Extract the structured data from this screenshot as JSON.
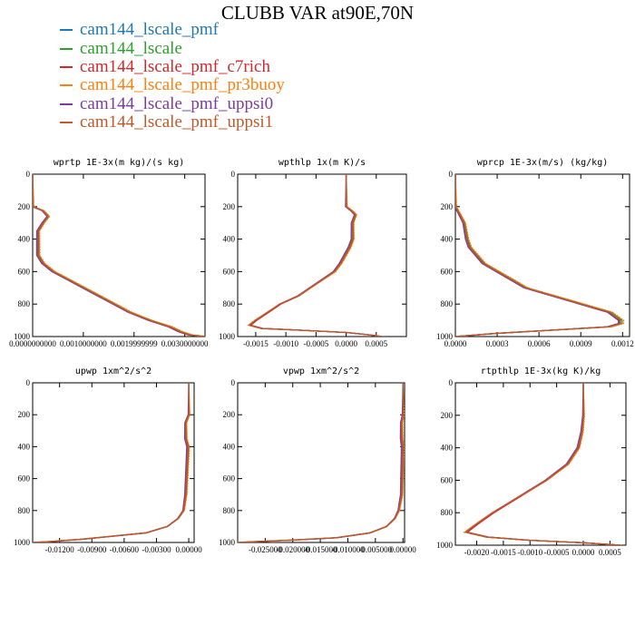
{
  "title": "CLUBB VAR at90E,70N",
  "legend": [
    {
      "name": "cam144_lscale_pmf",
      "color": "#1f77b4"
    },
    {
      "name": "cam144_lscale",
      "color": "#2ca02c"
    },
    {
      "name": "cam144_lscale_pmf_c7rich",
      "color": "#d62728"
    },
    {
      "name": "cam144_lscale_pmf_pr3buoy",
      "color": "#ff7f0e"
    },
    {
      "name": "cam144_lscale_pmf_uppsi0",
      "color": "#7d3c98"
    },
    {
      "name": "cam144_lscale_pmf_uppsi1",
      "color": "#c0582a"
    }
  ],
  "chart_data": [
    {
      "type": "line",
      "title": "wprtp  1E-3x(m kg)/(s kg)",
      "xlim": [
        0,
        0.0034
      ],
      "ylim": [
        0,
        1000
      ],
      "xticks": [
        0,
        0.001,
        0.002,
        0.003
      ],
      "xtick_labels": [
        "0.0000000000",
        "0.0010000000",
        "0.0019999999",
        "0.0030000000"
      ],
      "yticks": [
        0,
        200,
        400,
        600,
        800,
        1000
      ],
      "profile": [
        [
          0,
          0
        ],
        [
          0,
          200
        ],
        [
          0.0002,
          225
        ],
        [
          0.0003,
          260
        ],
        [
          0.0002,
          300
        ],
        [
          0.0001,
          350
        ],
        [
          0.0001,
          400
        ],
        [
          0.0001,
          450
        ],
        [
          0.0001,
          500
        ],
        [
          0.0002,
          550
        ],
        [
          0.0004,
          600
        ],
        [
          0.0007,
          650
        ],
        [
          0.001,
          700
        ],
        [
          0.0013,
          750
        ],
        [
          0.0016,
          800
        ],
        [
          0.0019,
          850
        ],
        [
          0.0023,
          900
        ],
        [
          0.0027,
          940
        ],
        [
          0.0029,
          970
        ],
        [
          0.0031,
          990
        ],
        [
          0.0034,
          1000
        ]
      ]
    },
    {
      "type": "line",
      "title": "wpthlp  1x(m K)/s",
      "xlim": [
        -0.0018,
        0.001
      ],
      "ylim": [
        0,
        1000
      ],
      "xticks": [
        -0.0015,
        -0.001,
        -0.0005,
        0,
        0.0005
      ],
      "xtick_labels": [
        "-0.0015",
        "-0.0010",
        "-0.0005",
        "0.0000",
        "0.0005"
      ],
      "yticks": [
        0,
        200,
        400,
        600,
        800,
        1000
      ],
      "profile": [
        [
          0,
          0
        ],
        [
          0,
          200
        ],
        [
          0.0001,
          230
        ],
        [
          0.00015,
          250
        ],
        [
          0.0001,
          300
        ],
        [
          0.0001,
          400
        ],
        [
          5e-05,
          450
        ],
        [
          -0.0001,
          550
        ],
        [
          -0.0002,
          600
        ],
        [
          -0.0004,
          650
        ],
        [
          -0.0006,
          700
        ],
        [
          -0.0008,
          750
        ],
        [
          -0.0011,
          800
        ],
        [
          -0.0013,
          850
        ],
        [
          -0.0015,
          900
        ],
        [
          -0.0016,
          930
        ],
        [
          -0.0014,
          950
        ],
        [
          -0.0008,
          960
        ],
        [
          0,
          975
        ],
        [
          0.0004,
          990
        ],
        [
          0.0006,
          1000
        ]
      ]
    },
    {
      "type": "line",
      "title": "wprcp  1E-3x(m/s) (kg/kg)",
      "xlim": [
        0,
        0.00125
      ],
      "ylim": [
        0,
        1000
      ],
      "xticks": [
        0,
        0.0003,
        0.0006,
        0.0009,
        0.0012
      ],
      "xtick_labels": [
        "0.0000",
        "0.0003",
        "0.0006",
        "0.0009",
        "0.0012"
      ],
      "yticks": [
        0,
        200,
        400,
        600,
        800,
        1000
      ],
      "profile": [
        [
          0,
          0
        ],
        [
          0,
          200
        ],
        [
          3e-05,
          250
        ],
        [
          6e-05,
          300
        ],
        [
          8e-05,
          400
        ],
        [
          0.0001,
          450
        ],
        [
          0.00015,
          500
        ],
        [
          0.0002,
          550
        ],
        [
          0.0003,
          600
        ],
        [
          0.0004,
          650
        ],
        [
          0.0005,
          700
        ],
        [
          0.0007,
          750
        ],
        [
          0.0009,
          800
        ],
        [
          0.0011,
          850
        ],
        [
          0.00118,
          900
        ],
        [
          0.00118,
          920
        ],
        [
          0.0011,
          940
        ],
        [
          0.0007,
          960
        ],
        [
          0.0003,
          980
        ],
        [
          0,
          1000
        ]
      ]
    },
    {
      "type": "line",
      "title": "upwp  1xm^2/s^2",
      "xlim": [
        -0.0145,
        0.0005
      ],
      "ylim": [
        0,
        1000
      ],
      "xticks": [
        -0.012,
        -0.009,
        -0.006,
        -0.003,
        0
      ],
      "xtick_labels": [
        "-0.01200",
        "-0.00900",
        "-0.00600",
        "-0.00300",
        "0.00000"
      ],
      "yticks": [
        0,
        200,
        400,
        600,
        800,
        1000
      ],
      "profile": [
        [
          0,
          0
        ],
        [
          0,
          200
        ],
        [
          -0.0003,
          250
        ],
        [
          -0.0003,
          350
        ],
        [
          -0.0001,
          400
        ],
        [
          -0.0003,
          700
        ],
        [
          -0.0005,
          800
        ],
        [
          -0.001,
          850
        ],
        [
          -0.002,
          900
        ],
        [
          -0.004,
          940
        ],
        [
          -0.007,
          960
        ],
        [
          -0.01,
          980
        ],
        [
          -0.013,
          995
        ],
        [
          -0.0145,
          1000
        ]
      ]
    },
    {
      "type": "line",
      "title": "vpwp  1xm^2/s^2",
      "xlim": [
        -0.03,
        0.0003
      ],
      "ylim": [
        0,
        1000
      ],
      "xticks": [
        -0.025,
        -0.02,
        -0.015,
        -0.01,
        -0.005,
        0
      ],
      "xtick_labels": [
        "-0.025000",
        "-0.020000",
        "-0.015000",
        "-0.010000",
        "-0.005000",
        "0.00000"
      ],
      "yticks": [
        0,
        200,
        400,
        600,
        800,
        1000
      ],
      "profile": [
        [
          0,
          0
        ],
        [
          0,
          200
        ],
        [
          -0.0003,
          250
        ],
        [
          -0.0003,
          350
        ],
        [
          -0.0001,
          400
        ],
        [
          -0.0003,
          700
        ],
        [
          -0.0008,
          800
        ],
        [
          -0.0015,
          850
        ],
        [
          -0.003,
          900
        ],
        [
          -0.006,
          940
        ],
        [
          -0.012,
          970
        ],
        [
          -0.02,
          985
        ],
        [
          -0.027,
          995
        ],
        [
          -0.03,
          1000
        ]
      ]
    },
    {
      "type": "line",
      "title": "rtpthlp  1E-3x(kg K)/kg",
      "xlim": [
        -0.0024,
        0.0008
      ],
      "ylim": [
        0,
        1000
      ],
      "xticks": [
        -0.002,
        -0.0015,
        -0.001,
        -0.0005,
        0,
        0.0005
      ],
      "xtick_labels": [
        "-0.0020",
        "-0.0015",
        "-0.0010",
        "-0.0005",
        "0.0000",
        "0.0005"
      ],
      "yticks": [
        0,
        200,
        400,
        600,
        800,
        1000
      ],
      "profile": [
        [
          0,
          0
        ],
        [
          0,
          200
        ],
        [
          -3e-05,
          300
        ],
        [
          -0.0001,
          400
        ],
        [
          -0.0003,
          500
        ],
        [
          -0.0007,
          600
        ],
        [
          -0.0012,
          700
        ],
        [
          -0.0017,
          800
        ],
        [
          -0.002,
          870
        ],
        [
          -0.0022,
          920
        ],
        [
          -0.0018,
          950
        ],
        [
          -0.001,
          970
        ],
        [
          0,
          985
        ],
        [
          0.0007,
          1000
        ]
      ]
    }
  ]
}
